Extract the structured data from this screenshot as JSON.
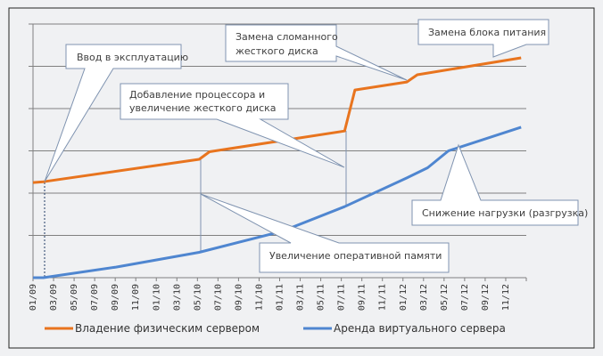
{
  "chart_data": {
    "type": "line",
    "title": "",
    "xlabel": "",
    "ylabel": "",
    "ylim": [
      0,
      6
    ],
    "grid": true,
    "legend_position": "bottom",
    "x_tick_labels": [
      "01/09",
      "03/09",
      "05/09",
      "07/09",
      "09/09",
      "11/09",
      "01/10",
      "03/10",
      "05/10",
      "07/10",
      "09/10",
      "11/10",
      "01/11",
      "03/11",
      "05/11",
      "07/11",
      "09/11",
      "11/11",
      "01/12",
      "03/12",
      "05/12",
      "07/12",
      "09/12",
      "11/12"
    ],
    "series": [
      {
        "name": "Владение физическим сервером",
        "color": "#e8741e",
        "points": [
          [
            0,
            2.25
          ],
          [
            1,
            2.27
          ],
          [
            16,
            2.8
          ],
          [
            17,
            2.98
          ],
          [
            30,
            3.47
          ],
          [
            31,
            4.44
          ],
          [
            36,
            4.63
          ],
          [
            37,
            4.8
          ],
          [
            47,
            5.2
          ]
        ]
      },
      {
        "name": "Аренда виртуального сервера",
        "color": "#4f86d0",
        "points": [
          [
            0,
            0
          ],
          [
            1,
            0
          ],
          [
            8,
            0.25
          ],
          [
            16,
            0.6
          ],
          [
            24,
            1.1
          ],
          [
            30,
            1.68
          ],
          [
            36,
            2.36
          ],
          [
            38,
            2.6
          ],
          [
            40,
            3.0
          ],
          [
            47,
            3.56
          ]
        ]
      }
    ],
    "annotations": [
      {
        "text": "Ввод в эксплуатацию"
      },
      {
        "text": "Добавление процессора и",
        "text2": "увеличение жесткого диска"
      },
      {
        "text": "Замена сломанного",
        "text2": "жесткого  диска"
      },
      {
        "text": "Замена блока питания"
      },
      {
        "text": "Снижение нагрузки (разгрузка)"
      },
      {
        "text": "Увеличение оперативной памяти"
      }
    ]
  }
}
